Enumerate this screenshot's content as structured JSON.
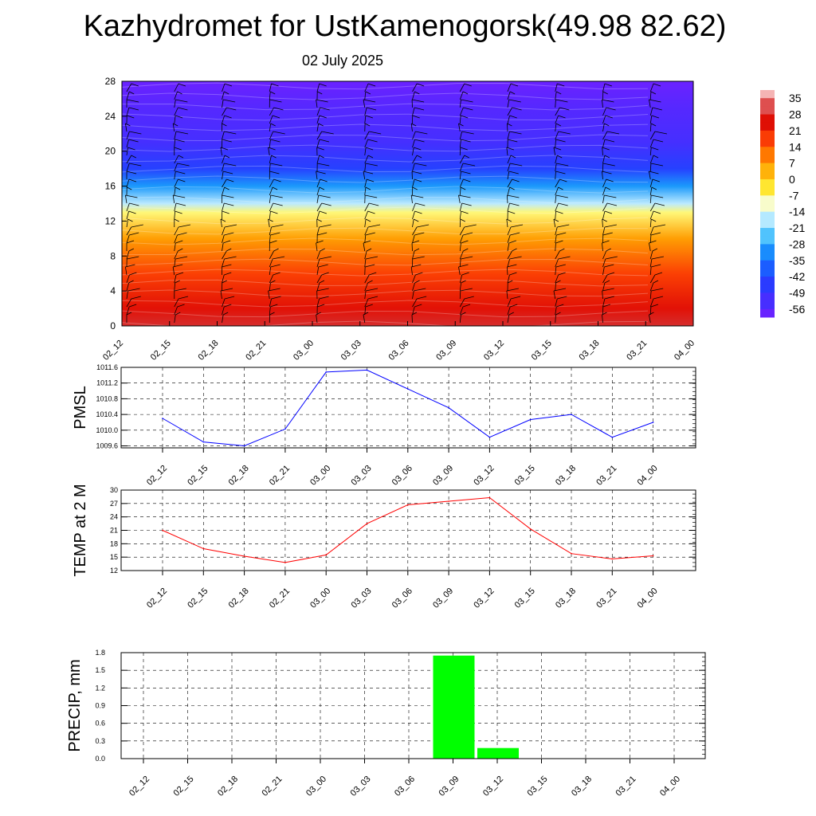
{
  "title": "Kazhydromet for UstKamenogorsk(49.98 82.62)",
  "subtitle": "02 July 2025",
  "time_labels": [
    "02_12",
    "02_15",
    "02_18",
    "02_21",
    "03_00",
    "03_03",
    "03_06",
    "03_09",
    "03_12",
    "03_15",
    "03_18",
    "03_21",
    "04_00"
  ],
  "chart_data": [
    {
      "type": "heatmap",
      "y_ticks": [
        0,
        4,
        8,
        12,
        16,
        20,
        24,
        28
      ],
      "ylim": [
        0,
        28
      ],
      "colorbar_labels": [
        "35",
        "28",
        "21",
        "14",
        "7",
        "0",
        "-7",
        "-14",
        "-21",
        "-28",
        "-35",
        "-42",
        "-49",
        "-56"
      ],
      "colorbar_range": [
        -63,
        35
      ],
      "temperature_profile": [
        {
          "level": 0,
          "value": 30
        },
        {
          "level": 2,
          "value": 24
        },
        {
          "level": 6,
          "value": 17
        },
        {
          "level": 10,
          "value": 6
        },
        {
          "level": 13,
          "value": -7
        },
        {
          "level": 14,
          "value": -17
        },
        {
          "level": 16,
          "value": -30
        },
        {
          "level": 18,
          "value": -44
        },
        {
          "level": 21,
          "value": -52
        },
        {
          "level": 25,
          "value": -56
        },
        {
          "level": 28,
          "value": -60
        }
      ],
      "colors": {
        "min": "#7a1eff",
        "max": "#e0a0a0"
      }
    },
    {
      "type": "line",
      "ylabel": "PMSL",
      "y_ticks": [
        "1009.6",
        "1010.0",
        "1010.4",
        "1010.8",
        "1011.2",
        "1011.6"
      ],
      "ylim": [
        1009.55,
        1011.6
      ],
      "series": [
        {
          "values": [
            1010.3,
            1009.7,
            1009.6,
            1010.03,
            1011.48,
            1011.53,
            1011.05,
            1010.57,
            1009.82,
            1010.27,
            1010.4,
            1009.82,
            1010.2
          ],
          "color": "#0000ff"
        }
      ]
    },
    {
      "type": "line",
      "ylabel": "TEMP at 2 M",
      "y_ticks": [
        "12",
        "15",
        "18",
        "21",
        "24",
        "27",
        "30"
      ],
      "ylim": [
        12,
        30
      ],
      "series": [
        {
          "values": [
            21.0,
            16.9,
            15.2,
            13.8,
            15.5,
            22.5,
            26.7,
            27.5,
            28.3,
            21.3,
            15.8,
            14.6,
            15.3
          ],
          "color": "#ff0000"
        }
      ]
    },
    {
      "type": "bar",
      "ylabel": "PRECIP, mm",
      "y_ticks": [
        "0.0",
        "0.3",
        "0.6",
        "0.9",
        "1.2",
        "1.5",
        "1.8"
      ],
      "ylim": [
        0,
        1.8
      ],
      "categories": [
        "02_12",
        "02_15",
        "02_18",
        "02_21",
        "03_00",
        "03_03",
        "03_06",
        "03_09",
        "03_12",
        "03_15",
        "03_18",
        "03_21",
        "04_00"
      ],
      "values": [
        0,
        0,
        0,
        0,
        0,
        0,
        0,
        1.75,
        0.18,
        0,
        0,
        0,
        0
      ],
      "color": "#00ff00"
    }
  ]
}
